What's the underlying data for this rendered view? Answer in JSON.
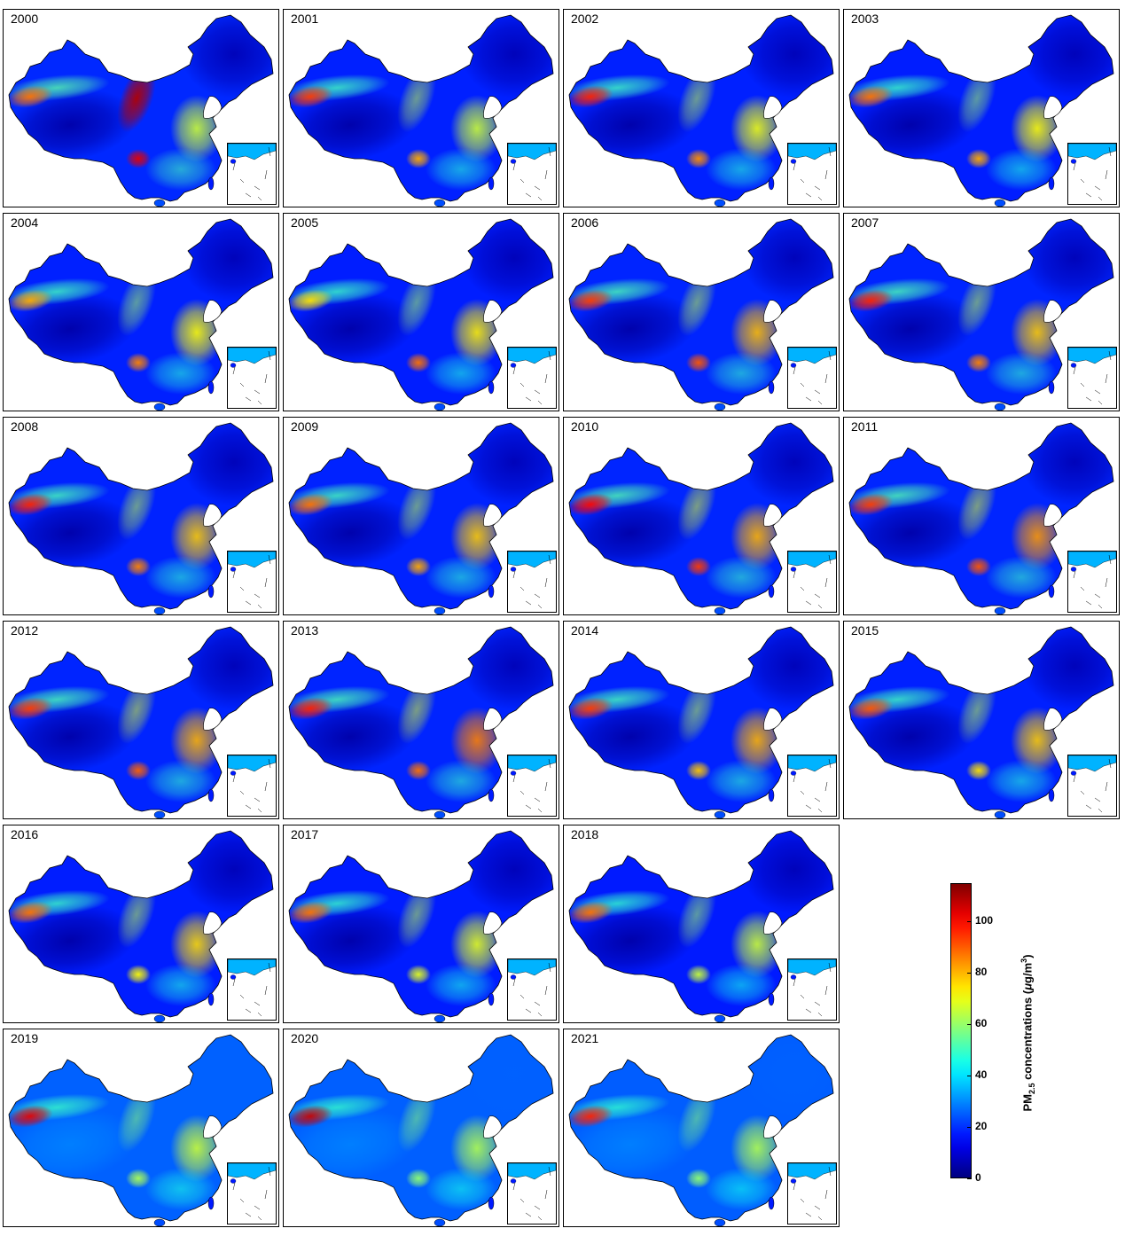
{
  "panels": [
    {
      "year": "2000",
      "level": 0.55,
      "east": 0.55,
      "west": 0.75,
      "sichuan": 1.0,
      "loess": 1.0,
      "style": "old"
    },
    {
      "year": "2001",
      "level": 0.45,
      "east": 0.55,
      "west": 0.85,
      "sichuan": 0.65,
      "loess": 0.3,
      "style": "old"
    },
    {
      "year": "2002",
      "level": 0.45,
      "east": 0.62,
      "west": 0.9,
      "sichuan": 0.7,
      "loess": 0.3,
      "style": "old"
    },
    {
      "year": "2003",
      "level": 0.42,
      "east": 0.65,
      "west": 0.75,
      "sichuan": 0.65,
      "loess": 0.25,
      "style": "old"
    },
    {
      "year": "2004",
      "level": 0.45,
      "east": 0.65,
      "west": 0.65,
      "sichuan": 0.72,
      "loess": 0.25,
      "style": "old"
    },
    {
      "year": "2005",
      "level": 0.42,
      "east": 0.68,
      "west": 0.55,
      "sichuan": 0.75,
      "loess": 0.25,
      "style": "old"
    },
    {
      "year": "2006",
      "level": 0.5,
      "east": 0.78,
      "west": 0.85,
      "sichuan": 0.8,
      "loess": 0.3,
      "style": "old"
    },
    {
      "year": "2007",
      "level": 0.5,
      "east": 0.75,
      "west": 0.9,
      "sichuan": 0.72,
      "loess": 0.3,
      "style": "old"
    },
    {
      "year": "2008",
      "level": 0.48,
      "east": 0.75,
      "west": 0.9,
      "sichuan": 0.72,
      "loess": 0.3,
      "style": "old"
    },
    {
      "year": "2009",
      "level": 0.48,
      "east": 0.75,
      "west": 0.75,
      "sichuan": 0.65,
      "loess": 0.3,
      "style": "old"
    },
    {
      "year": "2010",
      "level": 0.52,
      "east": 0.8,
      "west": 0.95,
      "sichuan": 0.85,
      "loess": 0.35,
      "style": "old"
    },
    {
      "year": "2011",
      "level": 0.52,
      "east": 0.85,
      "west": 0.85,
      "sichuan": 0.8,
      "loess": 0.35,
      "style": "old"
    },
    {
      "year": "2012",
      "level": 0.5,
      "east": 0.8,
      "west": 0.85,
      "sichuan": 0.78,
      "loess": 0.35,
      "style": "old"
    },
    {
      "year": "2013",
      "level": 0.5,
      "east": 0.9,
      "west": 0.9,
      "sichuan": 0.75,
      "loess": 0.35,
      "style": "old"
    },
    {
      "year": "2014",
      "level": 0.48,
      "east": 0.8,
      "west": 0.85,
      "sichuan": 0.6,
      "loess": 0.3,
      "style": "old"
    },
    {
      "year": "2015",
      "level": 0.45,
      "east": 0.75,
      "west": 0.8,
      "sichuan": 0.55,
      "loess": 0.3,
      "style": "old"
    },
    {
      "year": "2016",
      "level": 0.42,
      "east": 0.72,
      "west": 0.75,
      "sichuan": 0.5,
      "loess": 0.3,
      "style": "old"
    },
    {
      "year": "2017",
      "level": 0.4,
      "east": 0.6,
      "west": 0.75,
      "sichuan": 0.45,
      "loess": 0.3,
      "style": "old"
    },
    {
      "year": "2018",
      "level": 0.38,
      "east": 0.55,
      "west": 0.75,
      "sichuan": 0.4,
      "loess": 0.25,
      "style": "old"
    },
    {
      "year": "2019",
      "level": 0.4,
      "east": 0.55,
      "west": 1.0,
      "sichuan": 0.35,
      "loess": 0.2,
      "style": "new"
    },
    {
      "year": "2020",
      "level": 0.38,
      "east": 0.5,
      "west": 1.05,
      "sichuan": 0.3,
      "loess": 0.2,
      "style": "new"
    },
    {
      "year": "2021",
      "level": 0.36,
      "east": 0.5,
      "west": 0.9,
      "sichuan": 0.3,
      "loess": 0.2,
      "style": "new"
    }
  ],
  "colorbar": {
    "min": 0,
    "max": 115,
    "ticks": [
      "0",
      "20",
      "40",
      "60",
      "80",
      "100"
    ],
    "tick_values": [
      0,
      20,
      40,
      60,
      80,
      100
    ],
    "label_main": "PM",
    "label_sub": "2.5",
    "label_rest": " concentrations (",
    "label_mu": "μ",
    "label_unit": "g/m",
    "label_sup": "3",
    "label_close": ")",
    "colormap": "jet"
  }
}
